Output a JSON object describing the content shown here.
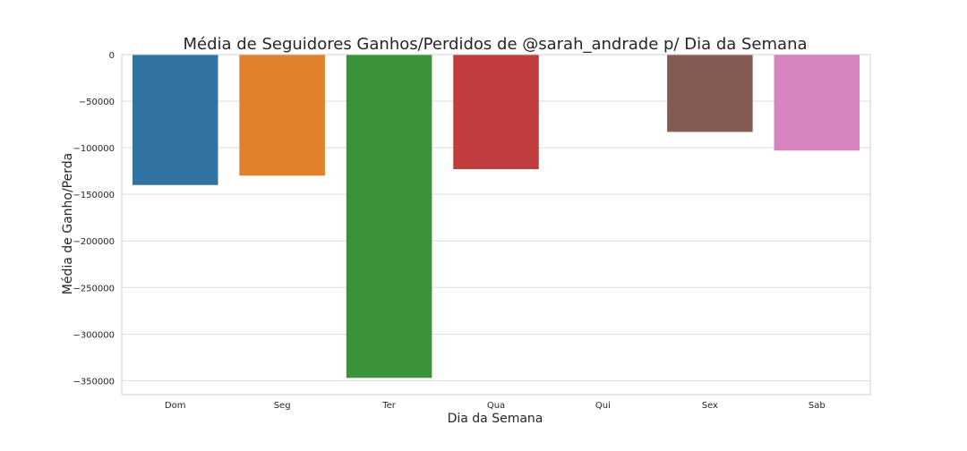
{
  "chart_data": {
    "type": "bar",
    "title": "Média de Seguidores Ganhos/Perdidos de @sarah_andrade p/ Dia da Semana",
    "xlabel": "Dia da Semana",
    "ylabel": "Média de Ganho/Perda",
    "categories": [
      "Dom",
      "Seg",
      "Ter",
      "Qua",
      "Qui",
      "Sex",
      "Sab"
    ],
    "values": [
      -140000,
      -130000,
      -347000,
      -123000,
      0,
      -83000,
      -103000
    ],
    "colors": [
      "#3274a1",
      "#e1812c",
      "#3a923a",
      "#c03d3e",
      "#9372b2",
      "#845b53",
      "#d684bd"
    ],
    "ylim": [
      -365000,
      0
    ],
    "yticks": [
      0,
      -50000,
      -100000,
      -150000,
      -200000,
      -250000,
      -300000,
      -350000
    ],
    "ytick_labels": [
      "0",
      "−50000",
      "−100000",
      "−150000",
      "−200000",
      "−250000",
      "−300000",
      "−350000"
    ],
    "grid": "horizontal",
    "background": "#ffffff"
  }
}
